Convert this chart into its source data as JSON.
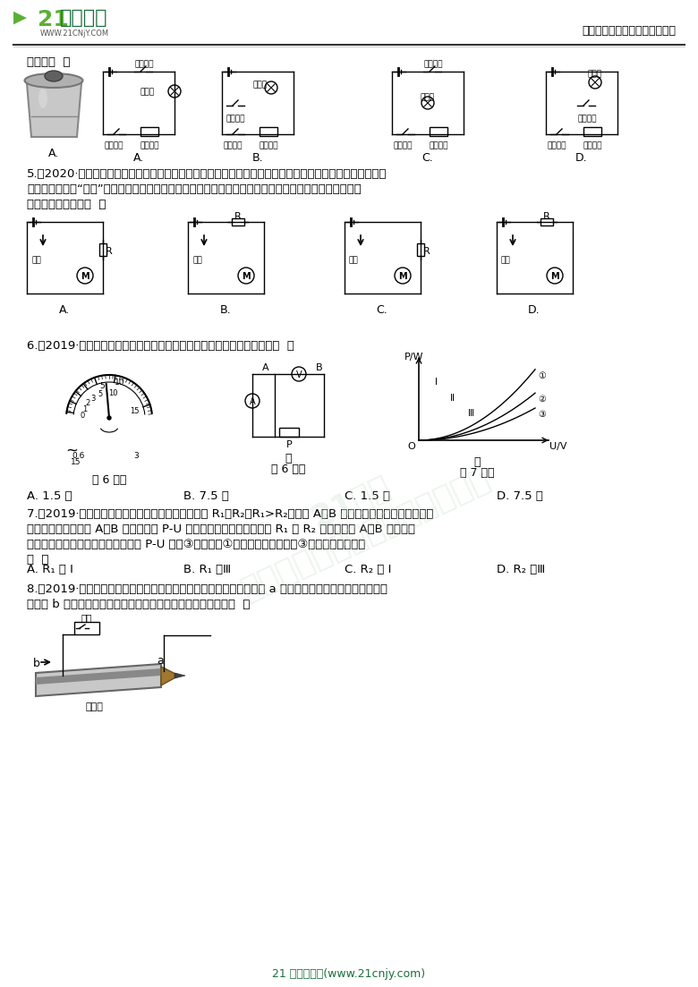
{
  "bg_color": "#ffffff",
  "header_logo_text": "21世纪教育",
  "header_subtext": "WWW.21CNjY.COM",
  "header_right_text": "中小学教育资源及组卷应用平台",
  "footer_text": "21 世纪教育网(www.21cnjy.com)",
  "q4_top": "求的是（  ）",
  "q5_line1": "5.（2020·嘉兴）为了减少碳排放，国家大力推行电动汽车。电动汽车的速度由流经电动机的电流大小控制，",
  "q5_line2": "当驾驶员向下踩“油门”蹏板时，改变接入电路的变阔器阻値，车速变大。下列是该电动汽车的模拟电路，",
  "q5_line3": "其中符合要求的是（  ）",
  "q6_line1": "6.（2019·温州）用伏安法测电阔时，某电表的示数如图所示。其示数为（  ）",
  "q6_label": "第 6 题图",
  "q7_label": "第 7 题图",
  "q6_A": "A. 1.5 安",
  "q6_B": "B. 7.5 安",
  "q6_C": "C. 1.5 伏",
  "q6_D": "D. 7.5 伏",
  "q7_line1": "7.（2019·宁波）如图甲所示电路，分别把定値电阔 R₁、R₂（R₁>R₂）接入 A、B 之间后进行实验，并根据电流",
  "q7_line2": "表和电压表示数画出 A、B 之间电阔的 P-U 图像，如图乙所示。如果把 R₁ 和 R₂ 并联后接入 A、B 之间进行",
  "q7_line3": "实验，同理，可以在图乙中画出它的 P-U 图像③。则图像①所对应的电阔和图像③所在的区域分别是",
  "q7_line4": "（  ）",
  "q7_A": "A. R₁ 和 Ⅰ",
  "q7_B": "B. R₁ 和Ⅲ",
  "q7_C": "C. R₂ 和 Ⅰ",
  "q7_D": "D. R₂ 和Ⅲ",
  "q8_line1": "8.（2019·嘉兴）如图是小明按设计连接的鲁笔芯变阔器电路，将导线 a 固定在鲁笔芯一端，闭合开关后，",
  "q8_line2": "把导线 b 沿鲁笔芯向右移动，灯泡变亮。则他设计的电路图是（  ）",
  "logo_green": "#5ab033",
  "dark_green": "#1a6e3c",
  "line_dark": "#333333",
  "line_light": "#aaaaaa"
}
